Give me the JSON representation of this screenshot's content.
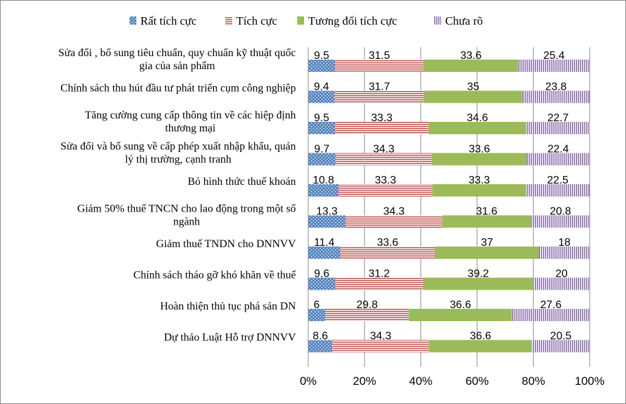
{
  "chart_data": {
    "type": "bar",
    "orientation": "horizontal",
    "stacked": "percent",
    "categories": [
      [
        "Sửa đổi , bổ sung tiêu chuẩn, quy chuẩn kỹ thuật quốc",
        "gia của sản phẩm"
      ],
      [
        "Chính sách thu hút đầu tư phát triển cụm công nghiệp"
      ],
      [
        "Tăng cường cung cấp thông tin về các hiệp định",
        "thương mại"
      ],
      [
        "Sửa đổi và bổ sung về cấp phép xuất nhập khẩu, quản",
        "lý thị trường, cạnh tranh"
      ],
      [
        "Bỏ hình thức thuế khoán"
      ],
      [
        "Giảm 50% thuế TNCN cho lao động trong một số",
        "ngành"
      ],
      [
        "Giảm thuế TNDN cho DNNVV"
      ],
      [
        "Chính sách tháo gỡ khó khăn về thuế"
      ],
      [
        "Hoàn thiện thủ tục phá sản DN"
      ],
      [
        "Dự thảo Luật Hỗ trợ DNNVV"
      ]
    ],
    "series": [
      {
        "name": "Rất tích cực",
        "color": "#4f81bd",
        "pattern": "dots",
        "values": [
          9.5,
          9.4,
          9.5,
          9.7,
          10.8,
          13.3,
          11.4,
          9.6,
          6,
          8.6
        ]
      },
      {
        "name": "Tích cực",
        "color": "#c0504d",
        "pattern": "horizontal-stripes",
        "values": [
          31.5,
          31.7,
          33.3,
          34.3,
          33.3,
          34.3,
          33.6,
          31.2,
          29.8,
          34.3
        ]
      },
      {
        "name": "Tương đối tích cực",
        "color": "#9bbb59",
        "pattern": "solid",
        "values": [
          33.6,
          35,
          34.6,
          33.6,
          33.3,
          31.6,
          37,
          39.2,
          36.6,
          36.6
        ]
      },
      {
        "name": "Chưa rõ",
        "color": "#8064a2",
        "pattern": "vertical-stripes",
        "values": [
          25.4,
          23.8,
          22.7,
          22.4,
          22.5,
          20.8,
          18,
          20,
          27.6,
          20.5
        ]
      }
    ],
    "x_ticks": [
      "0%",
      "20%",
      "40%",
      "60%",
      "80%",
      "100%"
    ],
    "xlim": [
      0,
      100
    ],
    "legend": "top",
    "grid": true
  }
}
